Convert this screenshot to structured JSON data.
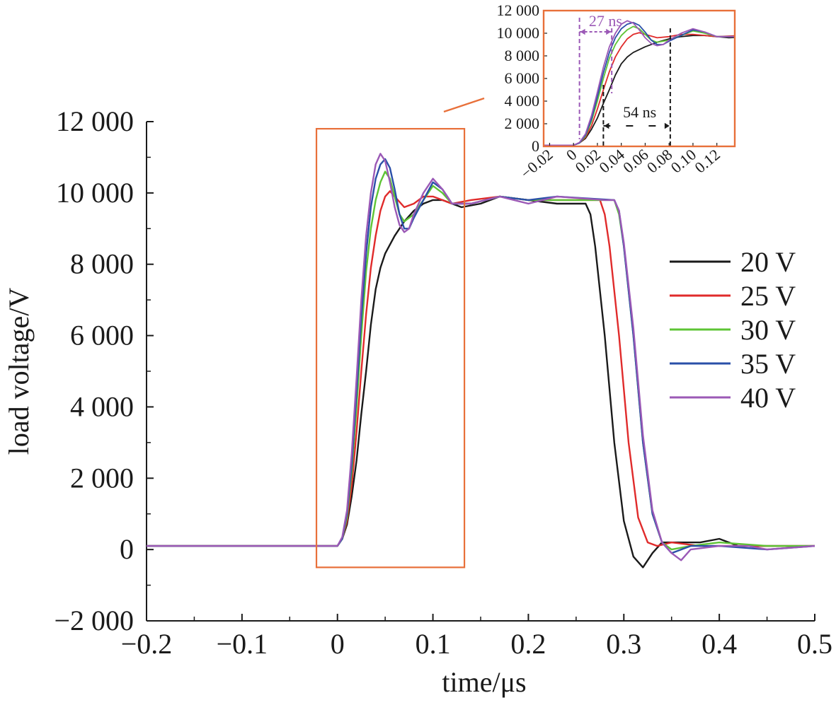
{
  "chart_data": [
    {
      "type": "line",
      "title": "",
      "xlabel": "time/μs",
      "ylabel": "load voltage/V",
      "xlim": [
        -0.2,
        0.5
      ],
      "ylim": [
        -2000,
        12000
      ],
      "x_ticks": [
        -0.2,
        -0.1,
        0,
        0.1,
        0.2,
        0.3,
        0.4,
        0.5
      ],
      "x_tick_labels": [
        "−0.2",
        "−0.1",
        "0",
        "0.1",
        "0.2",
        "0.3",
        "0.4",
        "0.5"
      ],
      "y_ticks": [
        -2000,
        0,
        2000,
        4000,
        6000,
        8000,
        10000,
        12000
      ],
      "y_tick_labels": [
        "−2 000",
        "0",
        "2 000",
        "4 000",
        "6 000",
        "8 000",
        "10 000",
        "12 000"
      ],
      "grid": false,
      "legend_position": "right",
      "highlight_box": {
        "x": [
          -0.022,
          0.133
        ],
        "y": [
          -500,
          11800
        ],
        "color": "#e8703a"
      },
      "series": [
        {
          "name": "20 V",
          "color": "#1a1a1a",
          "points": [
            [
              -0.2,
              100
            ],
            [
              0,
              100
            ],
            [
              0.005,
              300
            ],
            [
              0.01,
              700
            ],
            [
              0.015,
              1500
            ],
            [
              0.02,
              2500
            ],
            [
              0.025,
              3800
            ],
            [
              0.03,
              5000
            ],
            [
              0.035,
              6300
            ],
            [
              0.04,
              7300
            ],
            [
              0.045,
              7900
            ],
            [
              0.05,
              8300
            ],
            [
              0.06,
              8800
            ],
            [
              0.07,
              9200
            ],
            [
              0.08,
              9500
            ],
            [
              0.09,
              9700
            ],
            [
              0.1,
              9800
            ],
            [
              0.11,
              9800
            ],
            [
              0.12,
              9700
            ],
            [
              0.13,
              9600
            ],
            [
              0.15,
              9700
            ],
            [
              0.17,
              9900
            ],
            [
              0.2,
              9800
            ],
            [
              0.23,
              9700
            ],
            [
              0.26,
              9700
            ],
            [
              0.265,
              9400
            ],
            [
              0.27,
              8500
            ],
            [
              0.28,
              6000
            ],
            [
              0.29,
              3000
            ],
            [
              0.3,
              800
            ],
            [
              0.31,
              -200
            ],
            [
              0.32,
              -500
            ],
            [
              0.33,
              -100
            ],
            [
              0.34,
              200
            ],
            [
              0.35,
              200
            ],
            [
              0.38,
              200
            ],
            [
              0.4,
              300
            ],
            [
              0.42,
              100
            ],
            [
              0.45,
              100
            ],
            [
              0.5,
              100
            ]
          ]
        },
        {
          "name": "25 V",
          "color": "#e02b2b",
          "points": [
            [
              -0.2,
              100
            ],
            [
              0,
              100
            ],
            [
              0.005,
              300
            ],
            [
              0.01,
              800
            ],
            [
              0.015,
              1800
            ],
            [
              0.02,
              3300
            ],
            [
              0.025,
              5000
            ],
            [
              0.03,
              6600
            ],
            [
              0.035,
              7900
            ],
            [
              0.04,
              8800
            ],
            [
              0.045,
              9500
            ],
            [
              0.05,
              9900
            ],
            [
              0.055,
              10050
            ],
            [
              0.06,
              9900
            ],
            [
              0.07,
              9600
            ],
            [
              0.08,
              9700
            ],
            [
              0.09,
              9900
            ],
            [
              0.1,
              9900
            ],
            [
              0.12,
              9700
            ],
            [
              0.14,
              9800
            ],
            [
              0.17,
              9900
            ],
            [
              0.2,
              9800
            ],
            [
              0.23,
              9800
            ],
            [
              0.275,
              9800
            ],
            [
              0.28,
              9400
            ],
            [
              0.285,
              8500
            ],
            [
              0.295,
              6000
            ],
            [
              0.305,
              3000
            ],
            [
              0.315,
              900
            ],
            [
              0.325,
              200
            ],
            [
              0.335,
              100
            ],
            [
              0.35,
              200
            ],
            [
              0.38,
              100
            ],
            [
              0.42,
              100
            ],
            [
              0.5,
              100
            ]
          ]
        },
        {
          "name": "30 V",
          "color": "#5ec435",
          "points": [
            [
              -0.2,
              100
            ],
            [
              0,
              100
            ],
            [
              0.005,
              300
            ],
            [
              0.01,
              900
            ],
            [
              0.015,
              2200
            ],
            [
              0.02,
              4000
            ],
            [
              0.025,
              6000
            ],
            [
              0.03,
              7800
            ],
            [
              0.035,
              9000
            ],
            [
              0.04,
              9800
            ],
            [
              0.045,
              10300
            ],
            [
              0.05,
              10600
            ],
            [
              0.055,
              10400
            ],
            [
              0.06,
              9900
            ],
            [
              0.065,
              9400
            ],
            [
              0.07,
              9200
            ],
            [
              0.08,
              9400
            ],
            [
              0.09,
              9800
            ],
            [
              0.1,
              10200
            ],
            [
              0.11,
              10000
            ],
            [
              0.12,
              9700
            ],
            [
              0.14,
              9700
            ],
            [
              0.17,
              9900
            ],
            [
              0.2,
              9800
            ],
            [
              0.23,
              9800
            ],
            [
              0.29,
              9800
            ],
            [
              0.295,
              9400
            ],
            [
              0.3,
              8500
            ],
            [
              0.31,
              6000
            ],
            [
              0.32,
              3000
            ],
            [
              0.33,
              1000
            ],
            [
              0.34,
              200
            ],
            [
              0.35,
              0
            ],
            [
              0.37,
              100
            ],
            [
              0.4,
              200
            ],
            [
              0.45,
              100
            ],
            [
              0.5,
              100
            ]
          ]
        },
        {
          "name": "35 V",
          "color": "#2a4fa8",
          "points": [
            [
              -0.2,
              100
            ],
            [
              0,
              100
            ],
            [
              0.005,
              300
            ],
            [
              0.01,
              1000
            ],
            [
              0.015,
              2400
            ],
            [
              0.02,
              4400
            ],
            [
              0.025,
              6500
            ],
            [
              0.03,
              8300
            ],
            [
              0.035,
              9600
            ],
            [
              0.04,
              10400
            ],
            [
              0.045,
              10800
            ],
            [
              0.05,
              10950
            ],
            [
              0.055,
              10700
            ],
            [
              0.06,
              10100
            ],
            [
              0.065,
              9400
            ],
            [
              0.07,
              9000
            ],
            [
              0.075,
              9000
            ],
            [
              0.08,
              9300
            ],
            [
              0.09,
              9800
            ],
            [
              0.1,
              10300
            ],
            [
              0.11,
              10100
            ],
            [
              0.12,
              9700
            ],
            [
              0.14,
              9700
            ],
            [
              0.17,
              9900
            ],
            [
              0.2,
              9800
            ],
            [
              0.23,
              9900
            ],
            [
              0.29,
              9800
            ],
            [
              0.295,
              9500
            ],
            [
              0.3,
              8500
            ],
            [
              0.31,
              6000
            ],
            [
              0.32,
              3000
            ],
            [
              0.33,
              1000
            ],
            [
              0.34,
              200
            ],
            [
              0.35,
              -100
            ],
            [
              0.37,
              100
            ],
            [
              0.4,
              100
            ],
            [
              0.45,
              0
            ],
            [
              0.5,
              100
            ]
          ]
        },
        {
          "name": "40 V",
          "color": "#9b59b6",
          "points": [
            [
              -0.2,
              100
            ],
            [
              0,
              100
            ],
            [
              0.005,
              350
            ],
            [
              0.01,
              1100
            ],
            [
              0.015,
              2700
            ],
            [
              0.02,
              4800
            ],
            [
              0.025,
              7000
            ],
            [
              0.03,
              8800
            ],
            [
              0.035,
              10000
            ],
            [
              0.04,
              10800
            ],
            [
              0.045,
              11100
            ],
            [
              0.05,
              10900
            ],
            [
              0.055,
              10300
            ],
            [
              0.06,
              9600
            ],
            [
              0.065,
              9100
            ],
            [
              0.07,
              8900
            ],
            [
              0.075,
              9000
            ],
            [
              0.08,
              9400
            ],
            [
              0.09,
              10000
            ],
            [
              0.1,
              10400
            ],
            [
              0.11,
              10100
            ],
            [
              0.12,
              9700
            ],
            [
              0.14,
              9700
            ],
            [
              0.17,
              9900
            ],
            [
              0.2,
              9700
            ],
            [
              0.23,
              9900
            ],
            [
              0.28,
              9800
            ],
            [
              0.29,
              9800
            ],
            [
              0.295,
              9500
            ],
            [
              0.3,
              8600
            ],
            [
              0.31,
              6200
            ],
            [
              0.32,
              3200
            ],
            [
              0.33,
              1100
            ],
            [
              0.34,
              200
            ],
            [
              0.35,
              -100
            ],
            [
              0.36,
              -300
            ],
            [
              0.37,
              0
            ],
            [
              0.4,
              100
            ],
            [
              0.43,
              100
            ],
            [
              0.45,
              0
            ],
            [
              0.5,
              100
            ]
          ]
        }
      ]
    },
    {
      "type": "line",
      "title": "",
      "xlabel": "",
      "ylabel": "",
      "xlim": [
        -0.025,
        0.135
      ],
      "ylim": [
        0,
        12000
      ],
      "x_ticks": [
        -0.02,
        0,
        0.02,
        0.04,
        0.06,
        0.08,
        0.1,
        0.12
      ],
      "x_tick_labels": [
        "−0.02",
        "0",
        "0.02",
        "0.04",
        "0.06",
        "0.08",
        "0.10",
        "0.12"
      ],
      "y_ticks": [
        0,
        2000,
        4000,
        6000,
        8000,
        10000,
        12000
      ],
      "y_tick_labels": [
        "0",
        "2 000",
        "4 000",
        "6 000",
        "8 000",
        "10 000",
        "12 000"
      ],
      "grid": false,
      "frame_color": "#e8703a",
      "annotations": [
        {
          "text": "27 ns",
          "color": "#9b59b6",
          "x_from": 0.005,
          "x_to": 0.032,
          "y": 10200,
          "style": "dashed"
        },
        {
          "text": "54 ns",
          "color": "#1a1a1a",
          "x_from": 0.025,
          "x_to": 0.081,
          "y": 1500,
          "style": "dashed"
        }
      ],
      "series_ref": "same five series as the main chart (20 V, 25 V, 30 V, 35 V, 40 V), zoomed to the rising edge"
    }
  ]
}
